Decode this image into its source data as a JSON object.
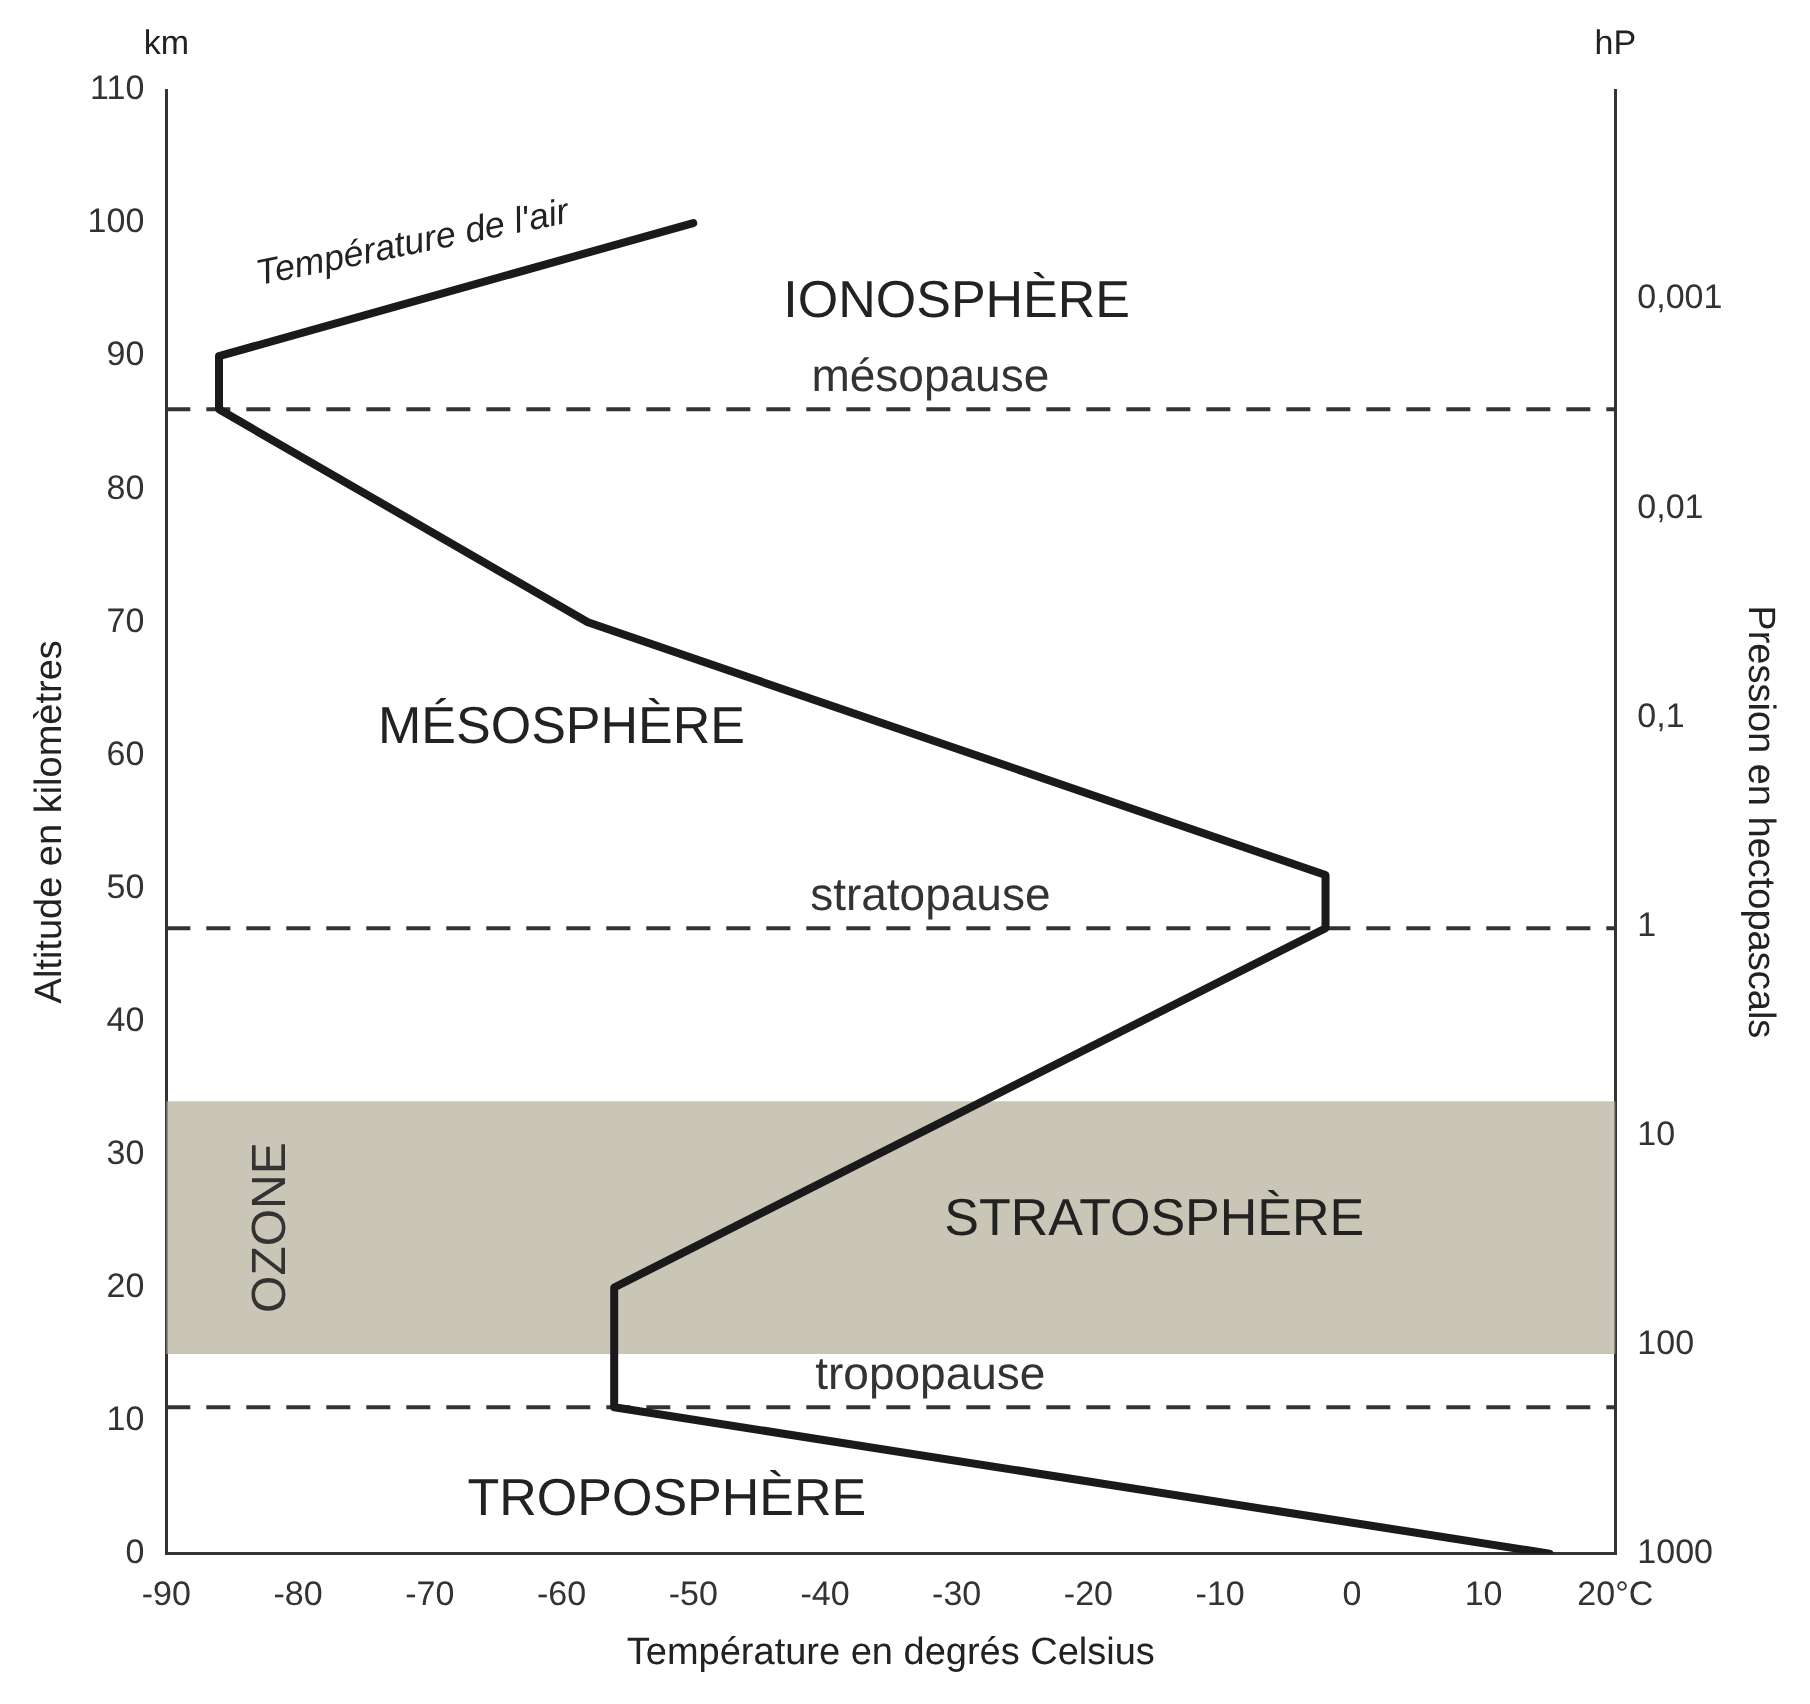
{
  "chart_data": {
    "type": "line",
    "xlabel": "Température en degrés Celsius",
    "ylabel": "Altitude en kilomètres",
    "y2label": "Pression en hectopascals",
    "series": [
      {
        "color": "#1a1a1a",
        "x": [
          15,
          -56,
          -56,
          -2,
          -2,
          -58,
          -86,
          -86,
          -50
        ],
        "values": [
          0,
          11,
          20,
          47,
          51,
          70,
          86,
          90,
          100
        ]
      }
    ],
    "xlim": [
      -90,
      20
    ],
    "xticks": [
      -90,
      -80,
      -70,
      -60,
      -50,
      -40,
      -30,
      -20,
      -10,
      0,
      10,
      {
        "value": 20,
        "label": "20°C"
      }
    ],
    "ylim": [
      0,
      110
    ],
    "yticks": [
      0,
      10,
      20,
      30,
      40,
      50,
      60,
      70,
      80,
      90,
      100,
      110
    ],
    "y2lim": [
      1000,
      0.0001
    ],
    "log": "y2",
    "y2ticks": [
      {
        "value": 0.001,
        "label": "0,001"
      },
      {
        "value": 0.01,
        "label": "0,01"
      },
      {
        "value": 0.1,
        "label": "0,1"
      },
      1,
      10,
      100,
      1000
    ],
    "ref_lines": [
      {
        "axis": "y",
        "value": 86,
        "label": "mésopause",
        "line_style": "dashed",
        "color": "#333333"
      },
      {
        "axis": "y",
        "value": 47,
        "label": "stratopause",
        "line_style": "dashed",
        "color": "#333333"
      },
      {
        "axis": "y",
        "value": 11,
        "label": "tropopause",
        "line_style": "dashed",
        "color": "#333333"
      }
    ],
    "bands": [
      {
        "axis": "y",
        "from": 15,
        "to": 34,
        "label": "OZONE",
        "color": "#b3ae99"
      }
    ],
    "annotations": [
      "km",
      "hP",
      "IONOSPHÈRE",
      "MÉSOSPHÈRE",
      "STRATOSPHÈRE",
      "TROPOSPHÈRE",
      {
        "text": "Température de l'air",
        "x": -68,
        "y": 95
      }
    ],
    "grid": false,
    "legend": false,
    "marker": "none",
    "line_style": "solid"
  }
}
